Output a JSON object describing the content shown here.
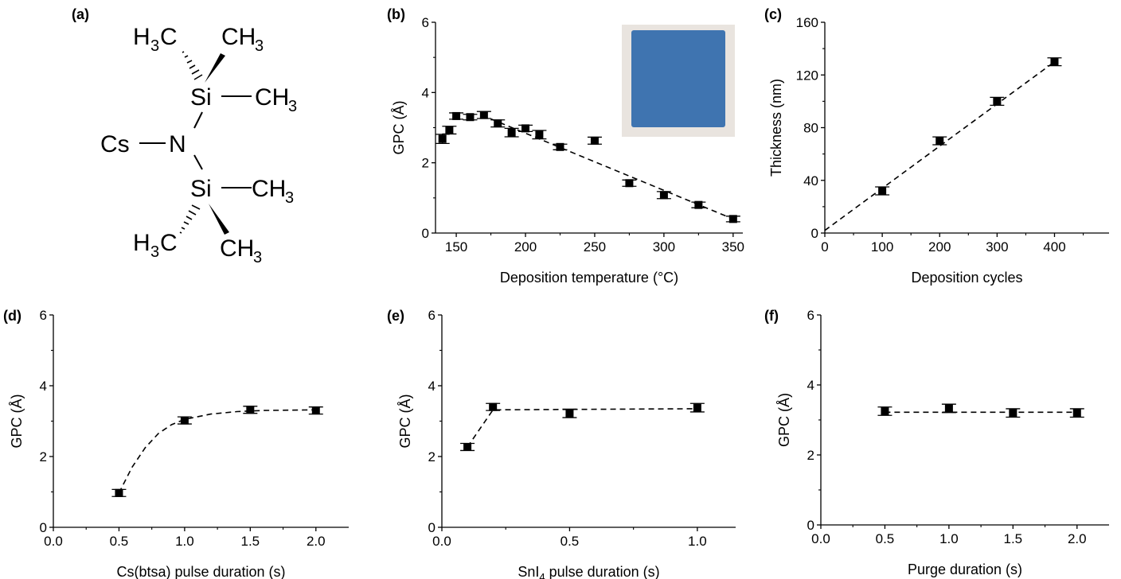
{
  "molecule": {
    "panel_label": "(a)",
    "atoms": {
      "cs": "Cs",
      "n": "N",
      "si_top": "Si",
      "si_bottom": "Si",
      "ch3_top_right": "CH",
      "ch3_top_right_sub": "3",
      "ch3_top_side": "CH",
      "ch3_top_side_sub": "3",
      "h3c_top_left_h": "H",
      "h3c_top_left_sub": "3",
      "h3c_top_left_c": "C",
      "ch3_bottom_side": "CH",
      "ch3_bottom_side_sub": "3",
      "h3c_bottom_left_h": "H",
      "h3c_bottom_left_sub": "3",
      "h3c_bottom_left_c": "C",
      "ch3_bottom_right": "CH",
      "ch3_bottom_right_sub": "3"
    }
  },
  "inset": {
    "description_color": "#3f74b0",
    "frame_color": "#e9e4df"
  },
  "chart_data": [
    {
      "id": "b",
      "type": "scatter",
      "panel_label": "(b)",
      "xlabel": "Deposition temperature (°C)",
      "ylabel": "GPC (Å)",
      "xlim": [
        135,
        357
      ],
      "ylim": [
        0,
        6
      ],
      "xticks": [
        150,
        200,
        250,
        300,
        350
      ],
      "yticks": [
        0,
        2,
        4,
        6
      ],
      "x": [
        140,
        145,
        150,
        160,
        170,
        180,
        190,
        200,
        210,
        225,
        250,
        275,
        300,
        325,
        350
      ],
      "y": [
        2.68,
        2.93,
        3.33,
        3.3,
        3.36,
        3.12,
        2.86,
        2.98,
        2.8,
        2.45,
        2.63,
        1.42,
        1.08,
        0.8,
        0.4
      ],
      "err": [
        0.13,
        0.11,
        0.09,
        0.08,
        0.1,
        0.1,
        0.12,
        0.09,
        0.12,
        0.08,
        0.1,
        0.09,
        0.1,
        0.08,
        0.08
      ],
      "fit": {
        "x": [
          175,
          350
        ],
        "y": [
          3.25,
          0.4
        ]
      },
      "has_inset": true
    },
    {
      "id": "c",
      "type": "scatter",
      "panel_label": "(c)",
      "xlabel": "Deposition cycles",
      "ylabel": "Thickness (nm)",
      "xlim": [
        0,
        495
      ],
      "ylim": [
        0,
        160
      ],
      "xticks": [
        0,
        100,
        200,
        300,
        400
      ],
      "yticks": [
        0,
        40,
        80,
        120,
        160
      ],
      "x": [
        100,
        200,
        300,
        400
      ],
      "y": [
        32,
        70,
        100,
        130
      ],
      "err": [
        3,
        3,
        3,
        3
      ],
      "fit": {
        "x": [
          0,
          400
        ],
        "y": [
          2,
          130
        ]
      }
    },
    {
      "id": "d",
      "type": "scatter",
      "panel_label": "(d)",
      "xlabel": "Cs(btsa) pulse duration (s)",
      "ylabel": "GPC (Å)",
      "xlim": [
        0,
        2.25
      ],
      "ylim": [
        0,
        6
      ],
      "xticks": [
        0.0,
        0.5,
        1.0,
        1.5,
        2.0
      ],
      "xtick_labels": [
        "0.0",
        "0.5",
        "1.0",
        "1.5",
        "2.0"
      ],
      "yticks": [
        0,
        2,
        4,
        6
      ],
      "x": [
        0.5,
        1.0,
        1.5,
        2.0
      ],
      "y": [
        0.97,
        3.02,
        3.32,
        3.3
      ],
      "err": [
        0.1,
        0.1,
        0.1,
        0.1
      ],
      "fit": {
        "x": [
          0.5,
          0.6,
          0.7,
          0.8,
          0.9,
          1.0,
          1.2,
          1.4,
          1.6,
          1.8,
          2.0
        ],
        "y": [
          0.97,
          1.7,
          2.25,
          2.65,
          2.9,
          3.05,
          3.2,
          3.27,
          3.3,
          3.31,
          3.32
        ]
      }
    },
    {
      "id": "e",
      "type": "scatter",
      "panel_label": "(e)",
      "xlabel_pre": "SnI",
      "xlabel_sub": "4",
      "xlabel_post": " pulse duration (s)",
      "ylabel": "GPC (Å)",
      "xlim": [
        0,
        1.15
      ],
      "ylim": [
        0,
        6
      ],
      "xticks": [
        0.0,
        0.5,
        1.0
      ],
      "xtick_labels": [
        "0.0",
        "0.5",
        "1.0"
      ],
      "yticks": [
        0,
        2,
        4,
        6
      ],
      "x": [
        0.1,
        0.2,
        0.5,
        1.0
      ],
      "y": [
        2.27,
        3.4,
        3.22,
        3.38
      ],
      "err": [
        0.1,
        0.1,
        0.12,
        0.12
      ],
      "fit": {
        "x": [
          0.1,
          0.2,
          1.0
        ],
        "y": [
          2.27,
          3.32,
          3.35
        ]
      }
    },
    {
      "id": "f",
      "type": "scatter",
      "panel_label": "(f)",
      "xlabel": "Purge duration (s)",
      "ylabel": "GPC (Å)",
      "xlim": [
        0,
        2.25
      ],
      "ylim": [
        0,
        6
      ],
      "xticks": [
        0.0,
        0.5,
        1.0,
        1.5,
        2.0
      ],
      "xtick_labels": [
        "0.0",
        "0.5",
        "1.0",
        "1.5",
        "2.0"
      ],
      "yticks": [
        0,
        2,
        4,
        6
      ],
      "x": [
        0.5,
        1.0,
        1.5,
        2.0
      ],
      "y": [
        3.25,
        3.33,
        3.2,
        3.2
      ],
      "err": [
        0.12,
        0.12,
        0.12,
        0.12
      ],
      "fit": {
        "x": [
          0.5,
          2.0
        ],
        "y": [
          3.22,
          3.22
        ]
      }
    }
  ]
}
